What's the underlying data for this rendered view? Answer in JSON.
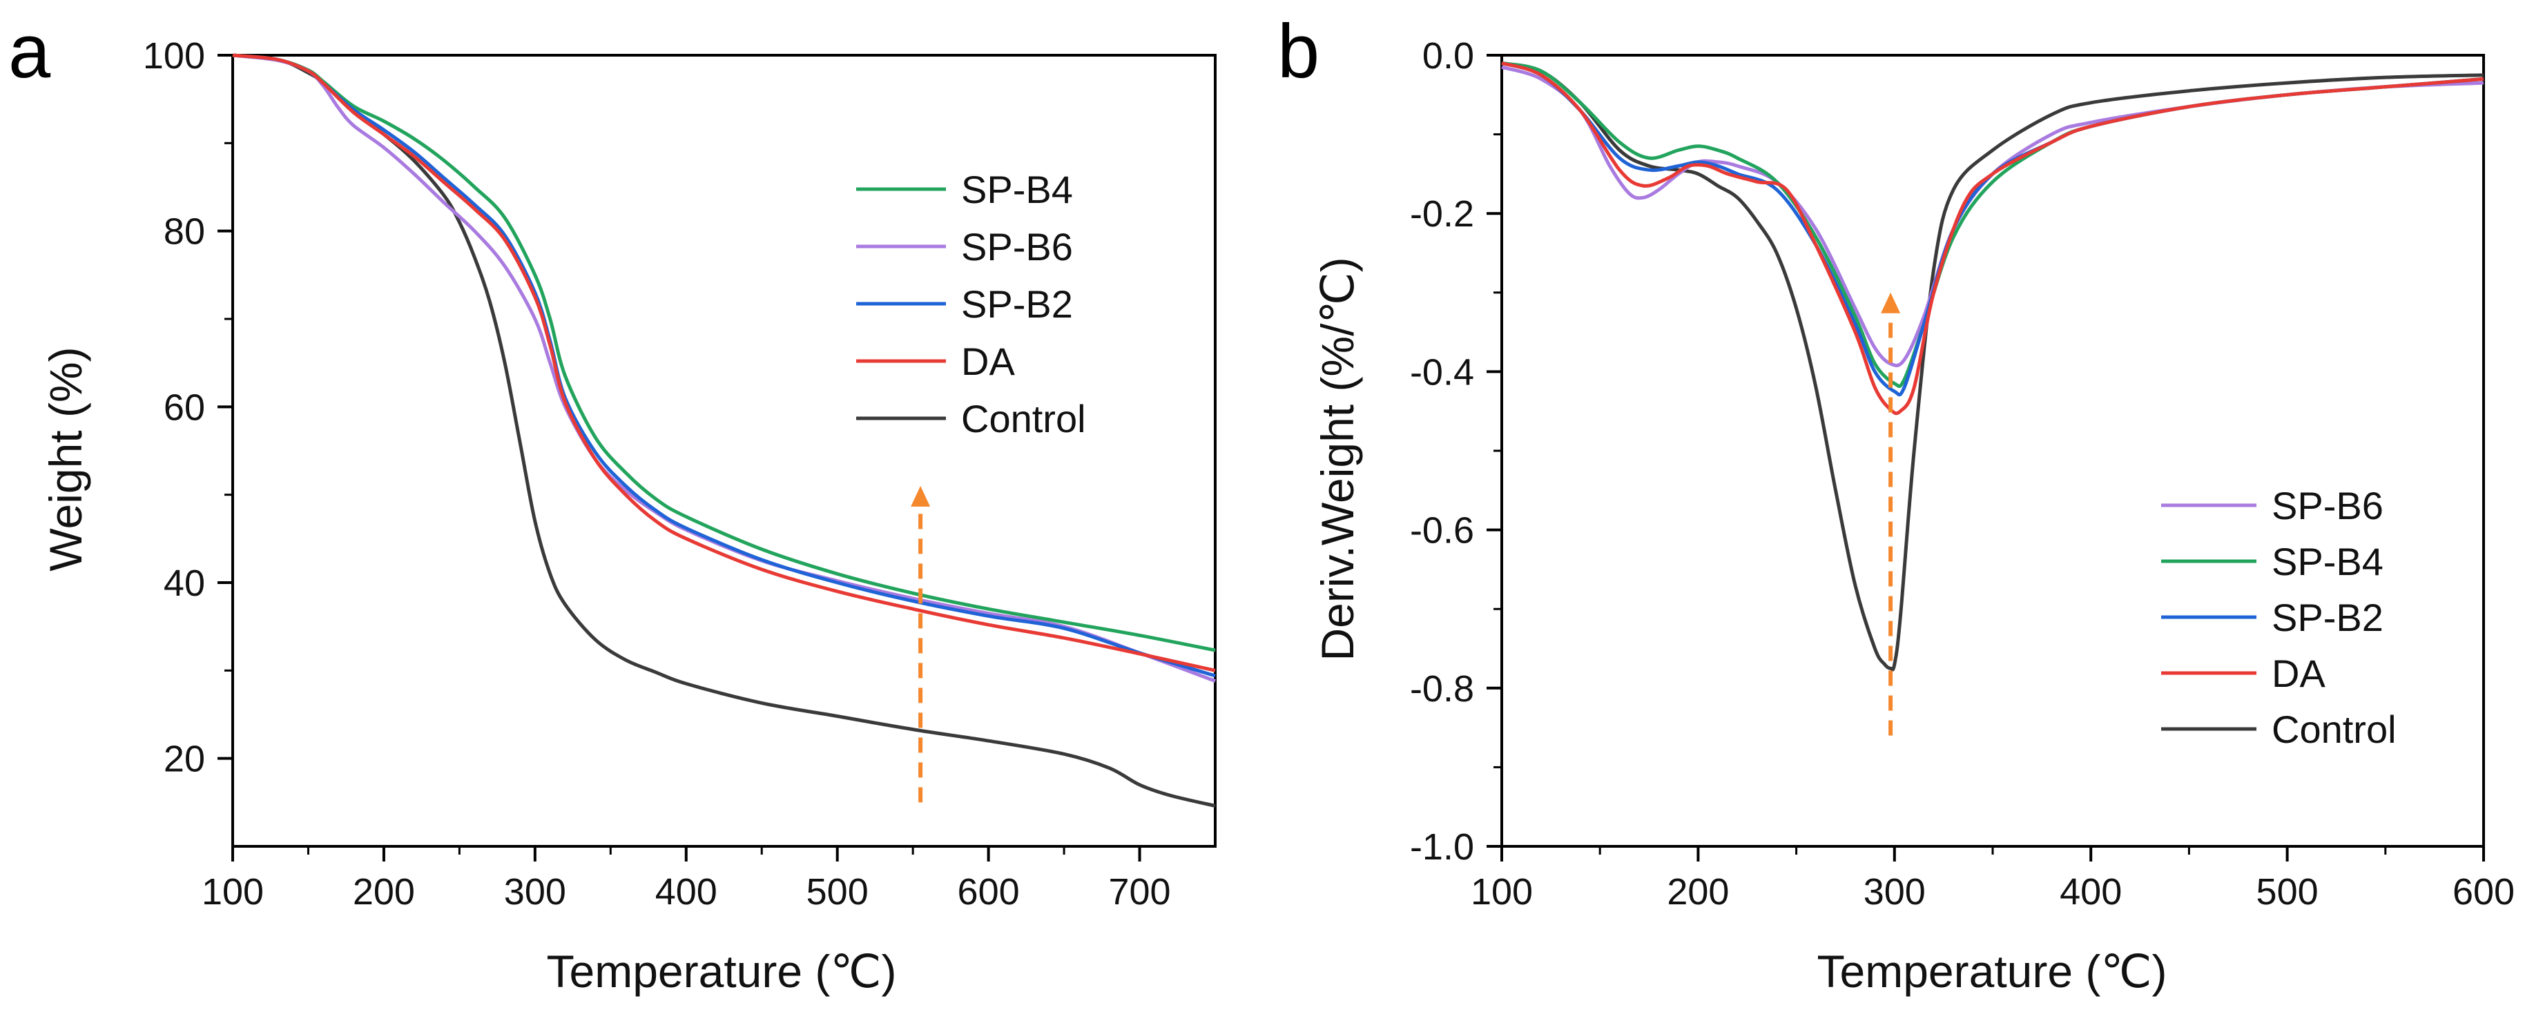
{
  "chart_data": [
    {
      "type": "line",
      "panel": "a",
      "xlabel": "Temperature (℃)",
      "ylabel": "Weight (%)",
      "xlim": [
        100,
        750
      ],
      "ylim": [
        10,
        100
      ],
      "xticks": [
        100,
        200,
        300,
        400,
        500,
        600,
        700
      ],
      "yticks": [
        20,
        40,
        60,
        80,
        100
      ],
      "legend_position": "top-right",
      "legend_order": [
        "SP-B4",
        "SP-B6",
        "SP-B2",
        "DA",
        "Control"
      ],
      "series": [
        {
          "name": "SP-B4",
          "color": "#22a45d",
          "x": [
            100,
            130,
            150,
            160,
            180,
            200,
            220,
            240,
            260,
            280,
            300,
            310,
            320,
            340,
            360,
            380,
            400,
            450,
            500,
            550,
            600,
            650,
            700,
            750
          ],
          "y": [
            100,
            99.5,
            98.3,
            97,
            94.2,
            92.5,
            90.5,
            88,
            85,
            81.5,
            75,
            70,
            63.5,
            56.5,
            52.5,
            49.5,
            47.5,
            43.8,
            41,
            38.8,
            37,
            35.5,
            34,
            32.3
          ]
        },
        {
          "name": "SP-B6",
          "color": "#a97be0",
          "x": [
            100,
            130,
            150,
            160,
            170,
            180,
            200,
            220,
            240,
            260,
            280,
            300,
            310,
            320,
            340,
            360,
            380,
            400,
            450,
            500,
            550,
            600,
            650,
            700,
            750
          ],
          "y": [
            100,
            99.4,
            98.2,
            96.5,
            94,
            92,
            89.5,
            86.5,
            83.2,
            80,
            76,
            70,
            65,
            60,
            54,
            50.5,
            48,
            46,
            42.5,
            40.2,
            38.2,
            36.5,
            35,
            32,
            28.8
          ]
        },
        {
          "name": "SP-B2",
          "color": "#1f63d6",
          "x": [
            100,
            130,
            150,
            160,
            180,
            200,
            220,
            240,
            260,
            280,
            300,
            310,
            320,
            340,
            360,
            380,
            400,
            450,
            500,
            550,
            600,
            650,
            700,
            750
          ],
          "y": [
            100,
            99.5,
            98.2,
            96.8,
            93.8,
            91.5,
            89,
            86,
            83,
            79.5,
            73,
            67.5,
            61,
            54.8,
            51,
            48.2,
            46.2,
            42.6,
            40,
            37.9,
            36.2,
            34.8,
            32,
            29.4
          ]
        },
        {
          "name": "DA",
          "color": "#e83a35",
          "x": [
            100,
            130,
            150,
            160,
            180,
            200,
            220,
            240,
            260,
            280,
            300,
            310,
            320,
            340,
            360,
            380,
            400,
            450,
            500,
            550,
            600,
            650,
            700,
            750
          ],
          "y": [
            100,
            99.5,
            98.2,
            96.8,
            93.5,
            91,
            88.5,
            85.5,
            82.5,
            79,
            72.5,
            67,
            60.5,
            54,
            50,
            47,
            45,
            41.5,
            39,
            37,
            35.2,
            33.7,
            31.9,
            30
          ]
        },
        {
          "name": "Control",
          "color": "#3a3a3a",
          "x": [
            100,
            130,
            150,
            160,
            180,
            200,
            220,
            240,
            250,
            260,
            270,
            280,
            290,
            300,
            310,
            320,
            340,
            360,
            380,
            400,
            450,
            500,
            550,
            600,
            650,
            680,
            700,
            720,
            750
          ],
          "y": [
            100,
            99.5,
            98,
            96.8,
            93.5,
            91,
            88,
            84,
            81,
            77,
            72,
            65,
            56,
            47,
            41,
            37.5,
            33.5,
            31.2,
            29.8,
            28.5,
            26.3,
            24.8,
            23.3,
            22,
            20.5,
            18.9,
            17,
            15.8,
            14.6
          ]
        }
      ]
    },
    {
      "type": "line",
      "panel": "b",
      "xlabel": "Temperature (℃)",
      "ylabel": "Deriv.Weight (%/℃)",
      "xlim": [
        100,
        600
      ],
      "ylim": [
        -1.0,
        0.0
      ],
      "xticks": [
        100,
        200,
        300,
        400,
        500,
        600
      ],
      "yticks": [
        -1.0,
        -0.8,
        -0.6,
        -0.4,
        -0.2,
        0.0
      ],
      "ytick_labels": [
        "-1.0",
        "-0.8",
        "-0.6",
        "-0.4",
        "-0.2",
        "0.0"
      ],
      "legend_position": "bottom-right",
      "legend_order": [
        "SP-B6",
        "SP-B4",
        "SP-B2",
        "DA",
        "Control"
      ],
      "series": [
        {
          "name": "SP-B6",
          "color": "#a97be0",
          "x": [
            100,
            120,
            140,
            155,
            165,
            172,
            180,
            190,
            200,
            210,
            220,
            240,
            260,
            280,
            290,
            298,
            305,
            315,
            330,
            350,
            380,
            400,
            450,
            500,
            550,
            600
          ],
          "y": [
            -0.015,
            -0.03,
            -0.07,
            -0.14,
            -0.175,
            -0.18,
            -0.17,
            -0.15,
            -0.135,
            -0.135,
            -0.14,
            -0.16,
            -0.22,
            -0.32,
            -0.37,
            -0.39,
            -0.385,
            -0.33,
            -0.22,
            -0.15,
            -0.1,
            -0.085,
            -0.065,
            -0.05,
            -0.04,
            -0.035
          ]
        },
        {
          "name": "SP-B4",
          "color": "#22a45d",
          "x": [
            100,
            120,
            140,
            160,
            175,
            190,
            200,
            210,
            220,
            240,
            260,
            280,
            290,
            300,
            305,
            315,
            330,
            350,
            380,
            400,
            450,
            500,
            550,
            600
          ],
          "y": [
            -0.01,
            -0.02,
            -0.06,
            -0.11,
            -0.13,
            -0.12,
            -0.115,
            -0.12,
            -0.13,
            -0.16,
            -0.23,
            -0.33,
            -0.39,
            -0.415,
            -0.41,
            -0.34,
            -0.23,
            -0.16,
            -0.11,
            -0.09,
            -0.065,
            -0.05,
            -0.04,
            -0.03
          ]
        },
        {
          "name": "SP-B2",
          "color": "#1f63d6",
          "x": [
            100,
            120,
            140,
            160,
            175,
            190,
            200,
            210,
            220,
            240,
            260,
            280,
            290,
            300,
            305,
            315,
            330,
            350,
            380,
            400,
            450,
            500,
            550,
            600
          ],
          "y": [
            -0.01,
            -0.025,
            -0.07,
            -0.13,
            -0.145,
            -0.14,
            -0.135,
            -0.14,
            -0.15,
            -0.17,
            -0.24,
            -0.34,
            -0.4,
            -0.425,
            -0.42,
            -0.34,
            -0.22,
            -0.15,
            -0.11,
            -0.09,
            -0.065,
            -0.05,
            -0.04,
            -0.03
          ]
        },
        {
          "name": "DA",
          "color": "#e83a35",
          "x": [
            100,
            120,
            140,
            160,
            172,
            185,
            195,
            205,
            215,
            230,
            245,
            260,
            280,
            290,
            298,
            303,
            310,
            320,
            335,
            350,
            380,
            400,
            450,
            500,
            550,
            600
          ],
          "y": [
            -0.01,
            -0.025,
            -0.07,
            -0.145,
            -0.165,
            -0.155,
            -0.14,
            -0.14,
            -0.15,
            -0.16,
            -0.17,
            -0.24,
            -0.35,
            -0.42,
            -0.448,
            -0.45,
            -0.42,
            -0.3,
            -0.19,
            -0.15,
            -0.11,
            -0.09,
            -0.065,
            -0.05,
            -0.04,
            -0.03
          ]
        },
        {
          "name": "Control",
          "color": "#3a3a3a",
          "x": [
            100,
            120,
            140,
            160,
            175,
            190,
            200,
            210,
            220,
            230,
            240,
            250,
            260,
            270,
            280,
            290,
            295,
            298,
            300,
            303,
            310,
            320,
            330,
            350,
            380,
            400,
            450,
            500,
            550,
            600
          ],
          "y": [
            -0.01,
            -0.02,
            -0.06,
            -0.12,
            -0.14,
            -0.145,
            -0.15,
            -0.165,
            -0.18,
            -0.21,
            -0.25,
            -0.32,
            -0.42,
            -0.55,
            -0.67,
            -0.75,
            -0.77,
            -0.775,
            -0.77,
            -0.71,
            -0.5,
            -0.27,
            -0.17,
            -0.12,
            -0.075,
            -0.06,
            -0.045,
            -0.035,
            -0.028,
            -0.025
          ]
        }
      ]
    }
  ],
  "panels": {
    "a": {
      "letter": "a",
      "arrow": {
        "x": 555,
        "y_from": 15,
        "y_to": 51,
        "color": "#f5872d"
      }
    },
    "b": {
      "letter": "b",
      "arrow": {
        "x": 298,
        "y_from": -0.86,
        "y_to": -0.3,
        "color": "#f5872d"
      }
    }
  }
}
